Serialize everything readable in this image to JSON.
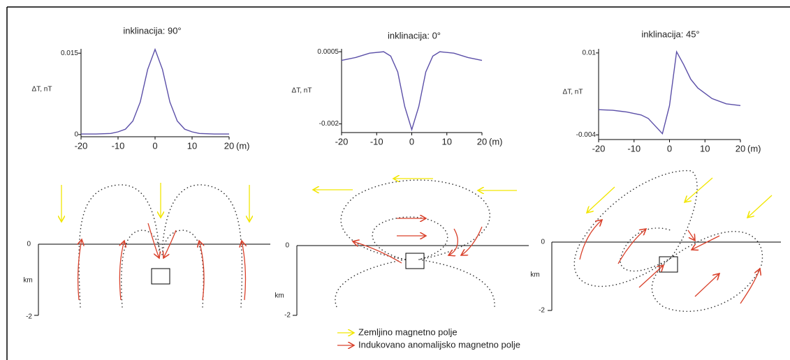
{
  "chart_data": [
    {
      "type": "line",
      "title": "inklinacija: 90°",
      "y_label": "ΔT, nT",
      "x_label": "(m)",
      "x": [
        -20,
        -16,
        -12,
        -10,
        -8,
        -6,
        -4,
        -2,
        0,
        2,
        4,
        6,
        8,
        10,
        12,
        16,
        20
      ],
      "series": [
        {
          "name": "ΔT",
          "color": "#5b4fa8",
          "values": [
            0.0001,
            0.0001,
            0.0002,
            0.0005,
            0.001,
            0.0025,
            0.006,
            0.012,
            0.0157,
            0.012,
            0.006,
            0.0025,
            0.001,
            0.0005,
            0.0002,
            0.0001,
            0.0001
          ]
        }
      ],
      "xlim": [
        -20,
        20
      ],
      "ylim": [
        -0.0004,
        0.0158
      ],
      "xticks": [
        -20,
        -10,
        0,
        10,
        20
      ],
      "yticks": [
        0,
        0.015
      ]
    },
    {
      "type": "line",
      "title": "inklinacija: 0°",
      "y_label": "ΔT, nT",
      "x_label": "(m)",
      "x": [
        -20,
        -16,
        -12,
        -8,
        -6,
        -4,
        -2,
        0,
        2,
        4,
        6,
        8,
        12,
        16,
        20
      ],
      "series": [
        {
          "name": "ΔT",
          "color": "#5b4fa8",
          "values": [
            0.0002,
            0.0003,
            0.00045,
            0.0005,
            0.00035,
            -0.0002,
            -0.0014,
            -0.0022,
            -0.0014,
            -0.0002,
            0.00035,
            0.0005,
            0.00045,
            0.0003,
            0.0002
          ]
        }
      ],
      "xlim": [
        -20,
        20
      ],
      "ylim": [
        -0.0023,
        0.0006
      ],
      "xticks": [
        -20,
        -10,
        0,
        10,
        20
      ],
      "yticks": [
        0.0005,
        -0.002
      ]
    },
    {
      "type": "line",
      "title": "inklinacija: 45°",
      "y_label": "ΔT, nT",
      "x_label": "(m)",
      "x": [
        -20,
        -16,
        -12,
        -8,
        -6,
        -4,
        -2,
        0,
        2,
        4,
        6,
        8,
        12,
        16,
        20
      ],
      "series": [
        {
          "name": "ΔT",
          "color": "#5b4fa8",
          "values": [
            0.0003,
            0.0002,
            -0.0001,
            -0.0006,
            -0.0012,
            -0.0025,
            -0.0038,
            0.001,
            0.0102,
            0.008,
            0.0055,
            0.004,
            0.0022,
            0.0013,
            0.001
          ]
        }
      ],
      "xlim": [
        -20,
        20
      ],
      "ylim": [
        -0.0048,
        0.0107
      ],
      "xticks": [
        -20,
        -10,
        0,
        10,
        20
      ],
      "yticks": [
        0.01,
        -0.004
      ]
    }
  ],
  "sections": [
    {
      "depth_top": "0",
      "depth_unit": "km",
      "depth_bottom": "-2"
    },
    {
      "depth_top": "0",
      "depth_unit": "km",
      "depth_bottom": "-2"
    },
    {
      "depth_top": "0",
      "depth_unit": "km",
      "depth_bottom": "-2"
    }
  ],
  "legend": [
    {
      "label": "Zemljino magnetno polje",
      "color": "#f2e600"
    },
    {
      "label": "Indukovano anomalijsko magnetno polje",
      "color": "#d9412b"
    }
  ]
}
